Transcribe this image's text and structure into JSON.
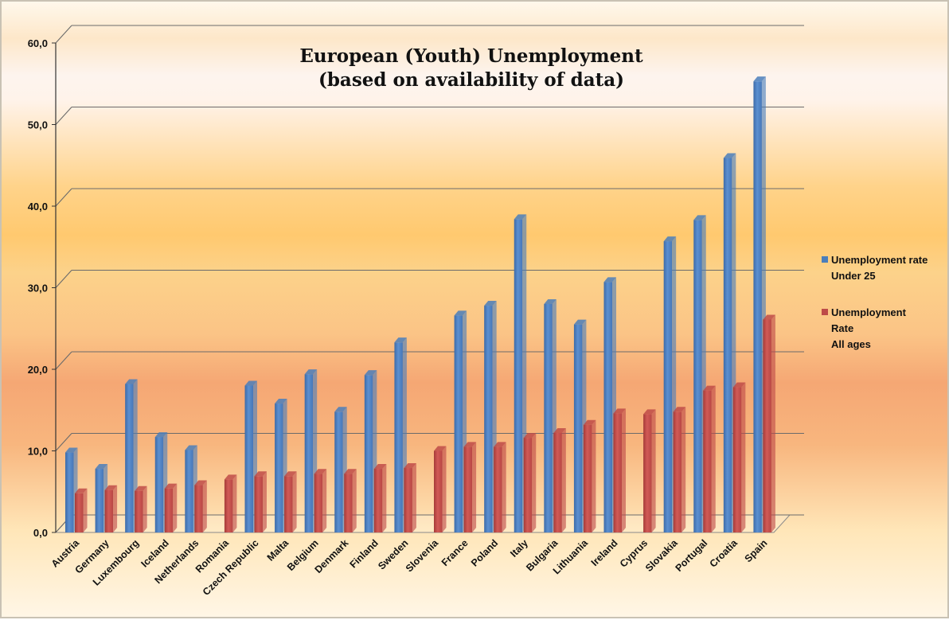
{
  "chart_data": {
    "type": "bar",
    "title_lines": [
      "European (Youth) Unemployment",
      "(based on availability of data)"
    ],
    "xlabel": "",
    "ylabel": "",
    "ylim": [
      0,
      60
    ],
    "yticks": [
      "0,0",
      "10,0",
      "20,0",
      "30,0",
      "40,0",
      "50,0",
      "60,0"
    ],
    "grid": true,
    "legend_position": "right",
    "categories": [
      "Austria",
      "Germany",
      "Luxembourg",
      "Iceland",
      "Netherlands",
      "Romania",
      "Czech Republic",
      "Malta",
      "Belgium",
      "Denmark",
      "Finland",
      "Sweden",
      "Slovenia",
      "France",
      "Poland",
      "Italy",
      "Bulgaria",
      "Lithuania",
      "Ireland",
      "Cyprus",
      "Slovakia",
      "Portugal",
      "Croatia",
      "Spain"
    ],
    "series": [
      {
        "name": "Unemployment rate Under 25",
        "legend_lines": [
          "Unemployment rate",
          "Under 25"
        ],
        "color": "#4a7ebb",
        "values": [
          9.8,
          7.8,
          18.2,
          11.7,
          10.1,
          null,
          18.0,
          15.8,
          19.4,
          14.8,
          19.3,
          23.3,
          null,
          26.6,
          27.8,
          38.4,
          28.0,
          25.5,
          30.7,
          null,
          35.7,
          38.3,
          45.9,
          55.3
        ]
      },
      {
        "name": "Unemployment Rate All ages",
        "legend_lines": [
          "Unemployment",
          "Rate",
          "All ages"
        ],
        "color": "#be4b48",
        "values": [
          4.8,
          5.2,
          5.1,
          5.4,
          5.8,
          6.5,
          6.9,
          6.9,
          7.2,
          7.2,
          7.8,
          7.9,
          10.0,
          10.5,
          10.5,
          11.6,
          12.2,
          13.2,
          14.6,
          14.5,
          14.8,
          17.4,
          17.8,
          26.1
        ]
      }
    ]
  }
}
